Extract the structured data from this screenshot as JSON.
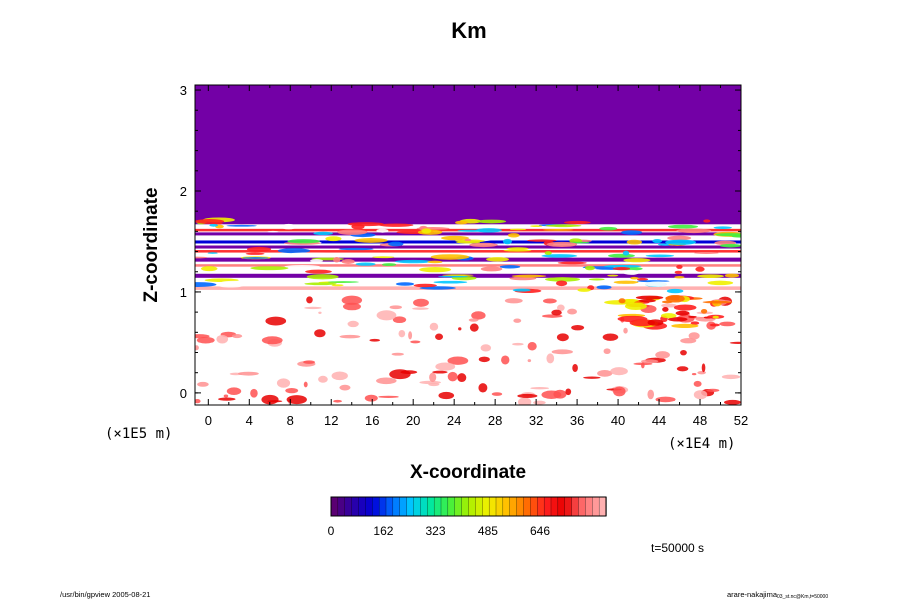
{
  "chart_data": {
    "type": "heatmap",
    "title": "Km",
    "xlabel": "X-coordinate",
    "ylabel": "Z-coordinate",
    "x_unit_label": "(×1E4 m)",
    "y_unit_label": "(×1E5 m)",
    "xlim": [
      -1.3,
      52.0
    ],
    "ylim": [
      -0.12,
      3.05
    ],
    "x_ticks": [
      0,
      4,
      8,
      12,
      16,
      20,
      24,
      28,
      32,
      36,
      40,
      44,
      48,
      52
    ],
    "y_ticks": [
      0,
      1,
      2,
      3
    ],
    "colorbar": {
      "min": 0,
      "max": 850,
      "ticks": [
        0,
        162,
        323,
        485,
        646
      ],
      "colors": [
        "#5a0072",
        "#2a00a8",
        "#0000d8",
        "#0068ff",
        "#00c8ff",
        "#00e8a0",
        "#40f040",
        "#a8f000",
        "#f0f000",
        "#ffc000",
        "#ff7000",
        "#ff2020",
        "#e80000",
        "#ff7070",
        "#ffb0b0"
      ]
    },
    "background_value": 0,
    "description_regions": [
      {
        "y_range": [
          1.68,
          3.05
        ],
        "value": 0
      },
      {
        "y_range": [
          0.95,
          1.68
        ],
        "value": "mixed banded 0-850"
      },
      {
        "y_range": [
          -0.12,
          0.95
        ],
        "value": "near saturation with red patches"
      }
    ],
    "annotation_time": "t=50000 s"
  },
  "footer": {
    "left": "/usr/bin/gpview 2005-08-21",
    "right_main": "arare-nakajima",
    "right_sub": "03_st.nc@Km,t=50000"
  },
  "colors": {
    "upper_region": "#7300a6",
    "high_region": "#ffffff",
    "frame": "#000000"
  }
}
